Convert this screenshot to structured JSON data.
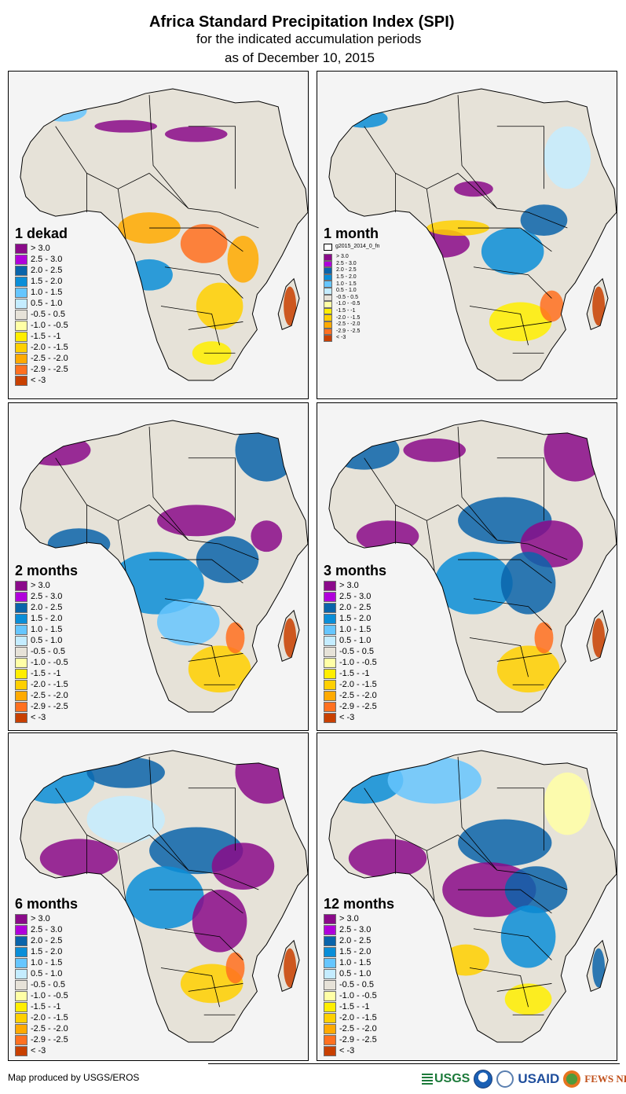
{
  "header": {
    "title": "Africa Standard Precipitation Index (SPI)",
    "subtitle": "for the indicated accumulation periods",
    "date_line": "as of December 10, 2015"
  },
  "legend_classes": [
    {
      "label": "> 3.0",
      "color": "#8a0a8a"
    },
    {
      "label": "2.5 - 3.0",
      "color": "#b000db"
    },
    {
      "label": "2.0 - 2.5",
      "color": "#0a64aa"
    },
    {
      "label": "1.5 - 2.0",
      "color": "#0a8ed8"
    },
    {
      "label": "1.0 - 1.5",
      "color": "#66c6ff"
    },
    {
      "label": "0.5 - 1.0",
      "color": "#c4ecff"
    },
    {
      "label": "-0.5 - 0.5",
      "color": "#e6e2d8"
    },
    {
      "label": "-1.0 - -0.5",
      "color": "#ffffa6"
    },
    {
      "label": "-1.5 - -1",
      "color": "#ffee00"
    },
    {
      "label": "-2.0 - -1.5",
      "color": "#ffd000"
    },
    {
      "label": "-2.5 - -2.0",
      "color": "#ffaa00"
    },
    {
      "label": "-2.9 - -2.5",
      "color": "#ff7020"
    },
    {
      "label": "< -3",
      "color": "#c84000"
    }
  ],
  "panels": [
    {
      "period": "1 dekad",
      "layer_label": null,
      "labels": [
        "> 3.0",
        "2.5 - 3.0",
        "2.0 - 2.5",
        "1.5 - 2.0",
        "1.0 - 1.5",
        "0.5 - 1.0",
        "-0.5 - 0.5",
        "-1.0 - -0.5",
        "-1.5 - -1",
        "-2.0 - -1.5",
        "-2.5 - -2.0",
        "-2.9 - -2.5",
        "< -3"
      ]
    },
    {
      "period": "1 month",
      "layer_label": "g2015_2014_0_fn",
      "labels": [
        "> 3.0",
        "2.5 - 3.0",
        "2.0 - 2.5",
        "1.5 - 2.0",
        "1.0 - 1.5",
        "0.5 - 1.0",
        "-0.5 - 0.5",
        "-1.0 - -0.5",
        "-1.5 - -1",
        "-2.0 - -1.5",
        "-2.5 - -2.0",
        "-2.9 - -2.5",
        "< -3"
      ]
    },
    {
      "period": "2 months",
      "layer_label": null,
      "labels": [
        "> 3.0",
        "2.5 - 3.0",
        "2.0 - 2.5",
        "1.5 - 2.0",
        "1.0 - 1.5",
        "0.5 - 1.0",
        "-0.5 - 0.5",
        "-1.0 - -0.5",
        "-1.5 - -1",
        "-2.0 - -1.5",
        "-2.5 - -2.0",
        "-2.9 - -2.5",
        "< -3"
      ]
    },
    {
      "period": "3 months",
      "layer_label": null,
      "labels": [
        "> 3.0",
        "2.5 - 3.0",
        "2.0 - 2.5",
        "1.5 - 2.0",
        "1.0 - 1.5",
        "0.5 - 1.0",
        "-0.5 - 0.5",
        "-1.0 - -0.5",
        "-1.5 - -1",
        "-2.0 - -1.5",
        "-2.5 - -2.0",
        "-2.9 - -2.5",
        "< -3"
      ]
    },
    {
      "period": "6 months",
      "layer_label": null,
      "labels": [
        "> 3.0",
        "2.5 - 3.0",
        "2.0 - 2.5",
        "1.5 - 2.0",
        "1.0 - 1.5",
        "0.5 - 1.0",
        "-0.5 - 0.5",
        "-1.0 - -0.5",
        "-1.5 - -1",
        "-2.0 - -1.5",
        "-2.5 - -2.0",
        "-2.9 - -2.5",
        "< -3"
      ]
    },
    {
      "period": "12 months",
      "layer_label": null,
      "labels": [
        "> 3.0",
        "2.5 - 3.0",
        "2.0 - 2.5",
        "1.5 - 2.0",
        "1.0 - 1.5",
        "0.5 - 1.0",
        "-0.5 - 0.5",
        "-1.0 - -0.5",
        "-1.5 - -1",
        "-2.0 - -1.5",
        "-2.5 - -2.0",
        "-2.9 - -2.5",
        "< -3"
      ]
    }
  ],
  "map_colors": {
    "ocean": "#f4f4f4",
    "land_neutral": "#e6e2d8",
    "border": "#000000"
  },
  "footer": {
    "credit": "Map produced by USGS/EROS",
    "logos": [
      "USGS",
      "NOAA",
      "USAID",
      "FEWS NET"
    ]
  }
}
